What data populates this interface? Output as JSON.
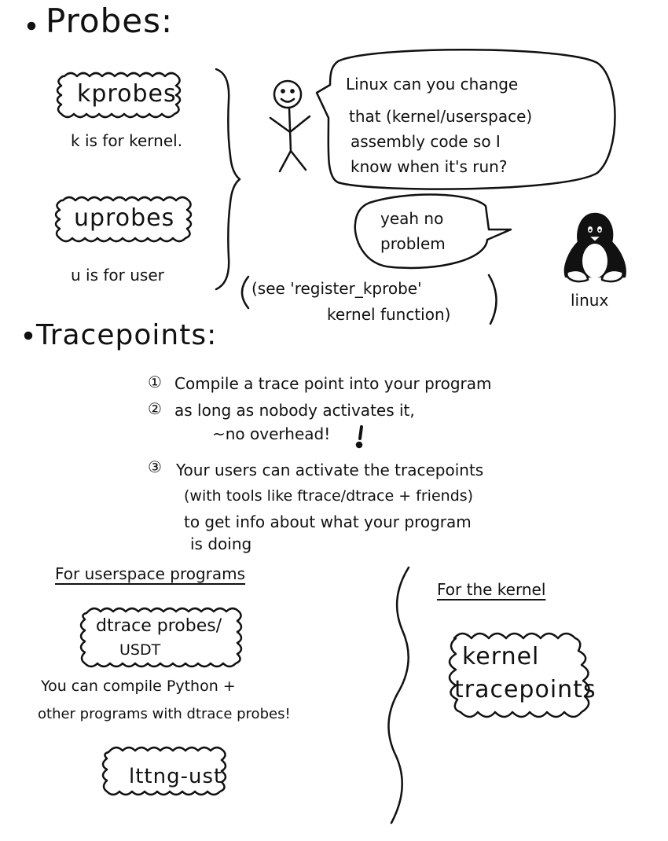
{
  "probes": {
    "heading": "Probes:",
    "kprobes_label": "kprobes",
    "kprobes_note": "k is for kernel.",
    "uprobes_label": "uprobes",
    "uprobes_note": "u is for user",
    "person_bubble": [
      "Linux can you change",
      "that (kernel/userspace)",
      "assembly code so I",
      "know when it's run?"
    ],
    "linux_bubble": [
      "yeah no",
      "problem"
    ],
    "linux_label": "linux",
    "see_note": [
      "(see 'register_kprobe'",
      "kernel function)"
    ]
  },
  "tracepoints": {
    "heading": "Tracepoints:",
    "steps": [
      {
        "num": "①",
        "text": "Compile a trace point into your program"
      },
      {
        "num": "②",
        "text": "as long as nobody activates it,",
        "extra": "~no overhead!"
      },
      {
        "num": "③",
        "text": "Your users can activate the tracepoints",
        "extra_lines": [
          "(with tools like ftrace/dtrace + friends)",
          "to get info about what your program",
          "is doing"
        ]
      }
    ],
    "userspace": {
      "heading": "For userspace programs",
      "box1": [
        "dtrace probes/",
        "USDT"
      ],
      "note": [
        "You can compile Python +",
        "other programs with dtrace probes!"
      ],
      "box2": "lttng-ust"
    },
    "kernel": {
      "heading": "For the kernel",
      "box": [
        "kernel",
        "tracepoints"
      ]
    }
  },
  "icons": {
    "person": "stick-figure-icon",
    "penguin": "tux-penguin-icon"
  }
}
